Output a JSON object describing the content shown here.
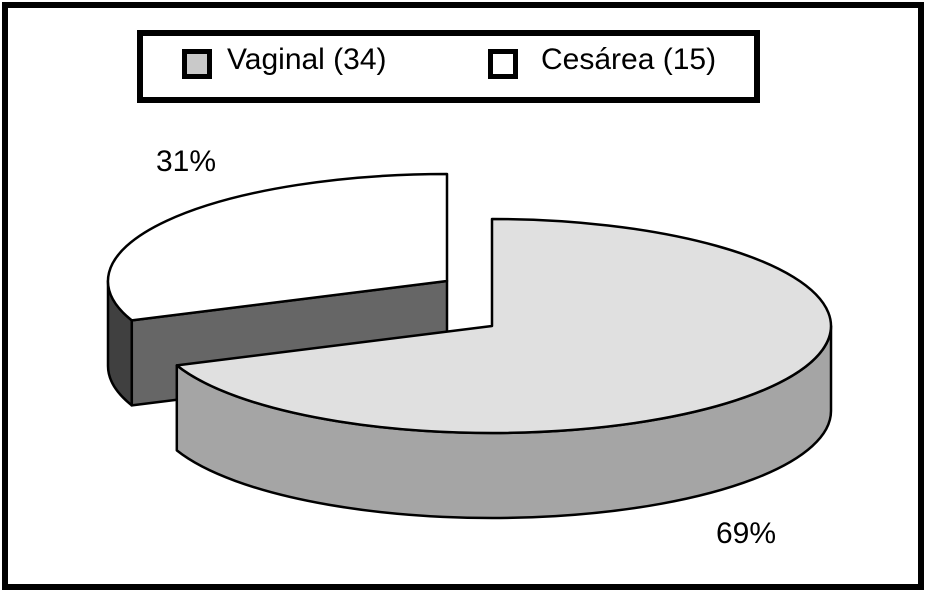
{
  "legend": {
    "items": [
      {
        "label": "Vaginal (34)",
        "swatch_color": "#c9c9c9"
      },
      {
        "label": "Cesárea (15)",
        "swatch_color": "#ffffff"
      }
    ]
  },
  "chart_data": {
    "type": "pie",
    "style": "3d-exploded",
    "title": "",
    "start_angle_deg": 90,
    "direction": "clockwise",
    "legend_position": "top",
    "slices": [
      {
        "label": "Vaginal",
        "count": 34,
        "pct": 69,
        "pct_label": "69%",
        "top_color": "#e0e0e0",
        "side_color": "#a5a5a5",
        "exploded": false
      },
      {
        "label": "Cesárea",
        "count": 15,
        "pct": 31,
        "pct_label": "31%",
        "top_color": "#ffffff",
        "side_color": "#666666",
        "side_color_arc": "#404040",
        "exploded": true
      }
    ],
    "colors": {
      "outline": "#000000",
      "background": "#ffffff"
    }
  }
}
